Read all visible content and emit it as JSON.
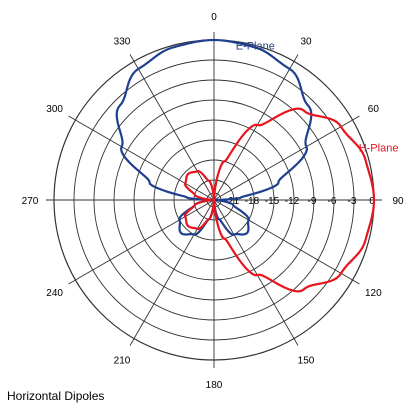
{
  "chart_data": {
    "type": "polar",
    "caption": "Horizontal Dipoles",
    "angle_ticks": [
      "0",
      "30",
      "60",
      "90",
      "120",
      "150",
      "180",
      "210",
      "240",
      "270",
      "300",
      "330"
    ],
    "radial_ticks": [
      "-21",
      "-18",
      "-15",
      "-12",
      "-9",
      "-6",
      "-3",
      "0"
    ],
    "radial_range_db": [
      -24,
      0
    ],
    "series": [
      {
        "name": "E-Plane",
        "color": "#1f3f8f",
        "points": [
          {
            "angle": 0,
            "db": 0
          },
          {
            "angle": 15,
            "db": -0.3
          },
          {
            "angle": 30,
            "db": -1.3
          },
          {
            "angle": 45,
            "db": -4
          },
          {
            "angle": 60,
            "db": -8
          },
          {
            "angle": 75,
            "db": -14
          },
          {
            "angle": 85,
            "db": -20
          },
          {
            "angle": 90,
            "db": -24
          },
          {
            "angle": 105,
            "db": -21
          },
          {
            "angle": 120,
            "db": -18
          },
          {
            "angle": 135,
            "db": -17
          },
          {
            "angle": 150,
            "db": -18
          },
          {
            "angle": 165,
            "db": -21
          },
          {
            "angle": 180,
            "db": -24
          },
          {
            "angle": 195,
            "db": -21
          },
          {
            "angle": 210,
            "db": -18
          },
          {
            "angle": 225,
            "db": -17
          },
          {
            "angle": 240,
            "db": -18
          },
          {
            "angle": 255,
            "db": -21
          },
          {
            "angle": 270,
            "db": -24
          },
          {
            "angle": 275,
            "db": -20
          },
          {
            "angle": 285,
            "db": -14
          },
          {
            "angle": 300,
            "db": -8
          },
          {
            "angle": 315,
            "db": -4
          },
          {
            "angle": 330,
            "db": -1.3
          },
          {
            "angle": 345,
            "db": -0.3
          },
          {
            "angle": 360,
            "db": 0
          }
        ]
      },
      {
        "name": "H-Plane",
        "color": "#e8141e",
        "points": [
          {
            "angle": 0,
            "db": -24
          },
          {
            "angle": 15,
            "db": -18
          },
          {
            "angle": 30,
            "db": -11
          },
          {
            "angle": 45,
            "db": -5
          },
          {
            "angle": 60,
            "db": -2
          },
          {
            "angle": 75,
            "db": -0.5
          },
          {
            "angle": 90,
            "db": 0
          },
          {
            "angle": 105,
            "db": -0.5
          },
          {
            "angle": 120,
            "db": -2
          },
          {
            "angle": 135,
            "db": -5
          },
          {
            "angle": 150,
            "db": -11
          },
          {
            "angle": 165,
            "db": -18
          },
          {
            "angle": 180,
            "db": -24
          },
          {
            "angle": 195,
            "db": -21
          },
          {
            "angle": 210,
            "db": -19
          },
          {
            "angle": 225,
            "db": -18.5
          },
          {
            "angle": 240,
            "db": -19
          },
          {
            "angle": 255,
            "db": -21
          },
          {
            "angle": 270,
            "db": -24
          },
          {
            "angle": 285,
            "db": -21
          },
          {
            "angle": 300,
            "db": -19
          },
          {
            "angle": 315,
            "db": -18.5
          },
          {
            "angle": 330,
            "db": -19
          },
          {
            "angle": 345,
            "db": -21
          },
          {
            "angle": 360,
            "db": -24
          }
        ]
      }
    ],
    "grid": true
  }
}
